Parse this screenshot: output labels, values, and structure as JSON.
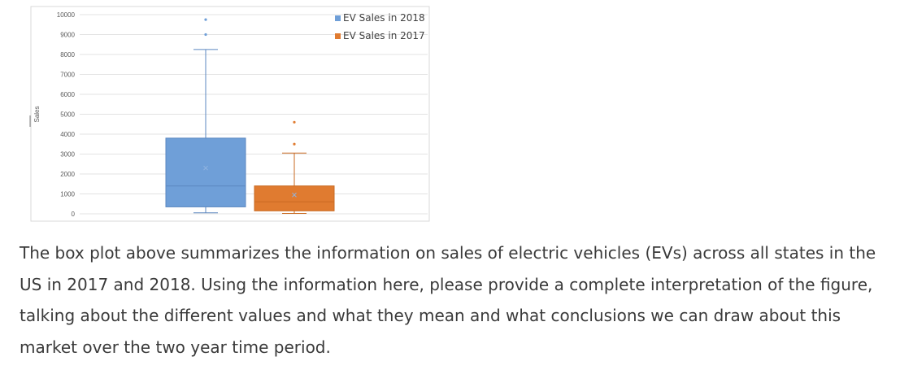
{
  "prompt_text": "The box plot above summarizes the information on sales of electric vehicles (EVs) across all states in the US in 2017 and 2018. Using the information here, please provide a complete interpretation of the figure, talking about the different values and what they mean and what conclusions we can draw about this market over the two year time period.",
  "chart_data": {
    "type": "boxplot",
    "ylabel": "Sales",
    "ylim": [
      0,
      10000
    ],
    "yticks": [
      "0",
      "1000",
      "2000",
      "3000",
      "4000",
      "5000",
      "6000",
      "7000",
      "8000",
      "9000",
      "10000"
    ],
    "grid": true,
    "legend_position": "top-right",
    "series": [
      {
        "name": "EV Sales in 2018",
        "color": "#6f9fd8",
        "edge": "#5b87c0",
        "min": 50,
        "q1": 350,
        "median": 1400,
        "q3": 3800,
        "max": 8250,
        "mean": 2300,
        "outliers": [
          9000,
          9750
        ]
      },
      {
        "name": "EV Sales in 2017",
        "color": "#e07b30",
        "edge": "#c96a22",
        "min": 20,
        "q1": 150,
        "median": 600,
        "q3": 1400,
        "max": 3050,
        "mean": 950,
        "outliers": [
          3500,
          4600
        ]
      }
    ]
  }
}
